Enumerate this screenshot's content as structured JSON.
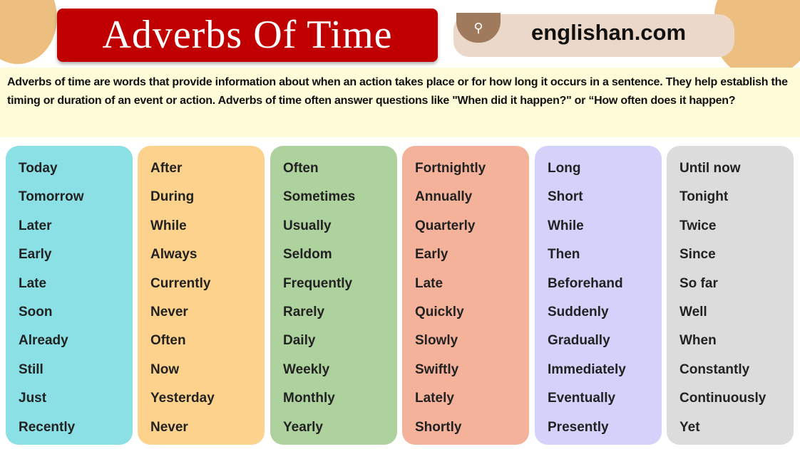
{
  "header": {
    "title": "Adverbs Of Time",
    "site": "englishan.com",
    "search_icon": "search-icon"
  },
  "intro": "Adverbs of time are words that provide information about when an action takes place or for how long it occurs in a sentence. They help establish the timing or duration of an event or action. Adverbs of time often answer questions like \"When did it happen?\" or “How often does it happen?",
  "columns": [
    {
      "color": "#8ae0e4",
      "words": [
        "Today",
        "Tomorrow",
        "Later",
        "Early",
        "Late",
        "Soon",
        "Already",
        "Still",
        "Just",
        "Recently"
      ]
    },
    {
      "color": "#fdd28c",
      "words": [
        "After",
        "During",
        "While",
        "Always",
        "Currently",
        "Never",
        "Often",
        "Now",
        "Yesterday",
        "Never"
      ]
    },
    {
      "color": "#aed29e",
      "words": [
        "Often",
        "Sometimes",
        "Usually",
        "Seldom",
        "Frequently",
        "Rarely",
        "Daily",
        "Weekly",
        "Monthly",
        "Yearly"
      ]
    },
    {
      "color": "#f5b29a",
      "words": [
        "Fortnightly",
        "Annually",
        "Quarterly",
        "Early",
        "Late",
        "Quickly",
        "Slowly",
        "Swiftly",
        "Lately",
        "Shortly"
      ]
    },
    {
      "color": "#d4d2fa",
      "words": [
        "Long",
        "Short",
        "While",
        "Then",
        "Beforehand",
        "Suddenly",
        "Gradually",
        "Immediately",
        "Eventually",
        "Presently"
      ]
    },
    {
      "color": "#dcdcdc",
      "words": [
        "Until now",
        "Tonight",
        "Twice",
        "Since",
        "So far",
        "Well",
        "When",
        "Constantly",
        "Continuously",
        "Yet"
      ]
    }
  ]
}
